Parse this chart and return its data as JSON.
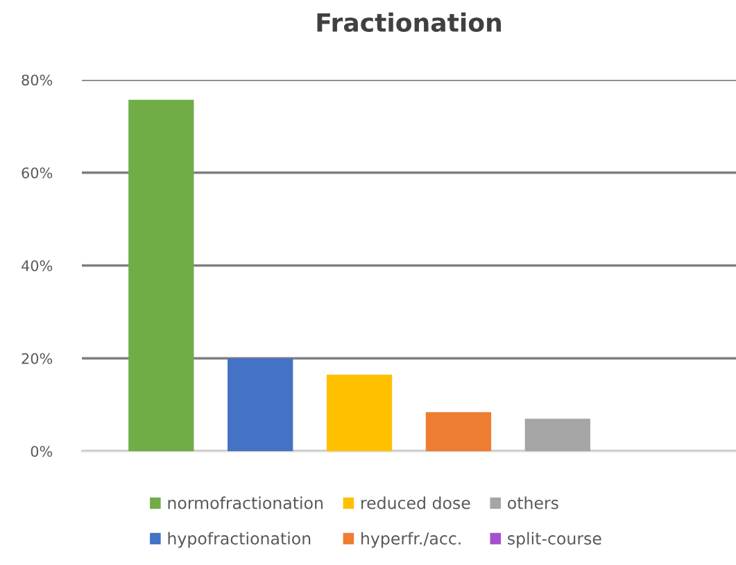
{
  "chart_data": {
    "type": "bar",
    "title": "Fractionation",
    "categories": [
      null
    ],
    "series": [
      {
        "name": "normofractionation",
        "color": "#70ad47",
        "values": [
          75.7
        ]
      },
      {
        "name": "hypofractionation",
        "color": "#4472c4",
        "values": [
          20
        ]
      },
      {
        "name": "reduced dose",
        "color": "#ffc000",
        "values": [
          16.5
        ]
      },
      {
        "name": "hyperfr./acc.",
        "color": "#ed7d31",
        "values": [
          8.4
        ]
      },
      {
        "name": "others",
        "color": "#a5a5a5",
        "values": [
          7
        ]
      },
      {
        "name": "split-course",
        "color": "#a64fcf",
        "values": [
          0
        ]
      }
    ],
    "ylim": [
      0,
      80
    ],
    "yticks": [
      {
        "value": 0,
        "label": "0%"
      },
      {
        "value": 20,
        "label": "20%"
      },
      {
        "value": 40,
        "label": "40%"
      },
      {
        "value": 60,
        "label": "60%"
      },
      {
        "value": 80,
        "label": "80%"
      }
    ],
    "grid": "y",
    "legend": "bottom"
  }
}
